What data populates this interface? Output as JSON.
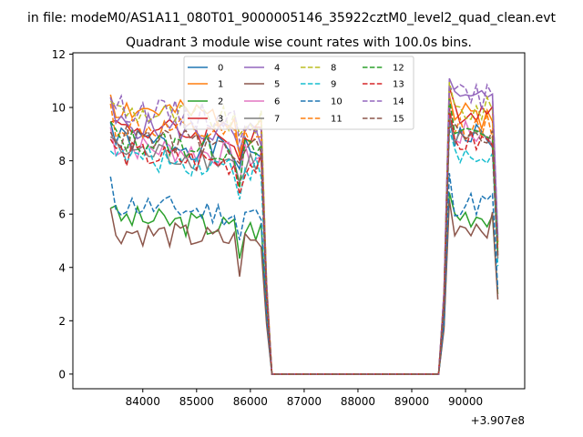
{
  "figure": {
    "suptitle": "in file: modeM0/AS1A11_080T01_9000005146_35922cztM0_level2_quad_clean.evt",
    "title": "Quadrant 3 module wise count rates with 100.0s bins.",
    "x_offset_label": "+3.907e8"
  },
  "chart_data": {
    "type": "line",
    "title": "Quadrant 3 module wise count rates with 100.0s bins.",
    "xlabel": "",
    "ylabel": "",
    "xlim": [
      82700,
      91100
    ],
    "ylim": [
      -0.55,
      12.05
    ],
    "x_offset": 390700000,
    "xticks": [
      84000,
      85000,
      86000,
      87000,
      88000,
      89000,
      90000
    ],
    "yticks": [
      0,
      2,
      4,
      6,
      8,
      10,
      12
    ],
    "grid": false,
    "legend": {
      "placement": "top-center",
      "columns": 4
    },
    "segment_a_x": [
      83400,
      83500,
      83600,
      83700,
      83800,
      83900,
      84000,
      84100,
      84200,
      84300,
      84400,
      84500,
      84600,
      84700,
      84800,
      84900,
      85000,
      85100,
      85200,
      85300,
      85400,
      85500,
      85600,
      85700,
      85800,
      85900,
      86000,
      86100,
      86200
    ],
    "segment_b_x": [
      89700,
      89800,
      89900,
      90000,
      90100,
      90200,
      90300,
      90400,
      90500,
      90600
    ],
    "gap_x": [
      86300,
      86400,
      89500,
      89600
    ],
    "series": [
      {
        "name": "0",
        "color": "#1f77b4",
        "style": "solid",
        "base_a": 8.8,
        "base_b": 8.9,
        "seed": 1
      },
      {
        "name": "1",
        "color": "#ff7f0e",
        "style": "solid",
        "base_a": 10.0,
        "base_b": 9.7,
        "seed": 2
      },
      {
        "name": "2",
        "color": "#2ca02c",
        "style": "solid",
        "base_a": 5.9,
        "base_b": 6.0,
        "seed": 3
      },
      {
        "name": "3",
        "color": "#d62728",
        "style": "solid",
        "base_a": 9.3,
        "base_b": 9.9,
        "seed": 4
      },
      {
        "name": "4",
        "color": "#9467bd",
        "style": "solid",
        "base_a": 9.4,
        "base_b": 10.2,
        "seed": 5
      },
      {
        "name": "5",
        "color": "#8c564b",
        "style": "solid",
        "base_a": 5.4,
        "base_b": 5.6,
        "seed": 6
      },
      {
        "name": "6",
        "color": "#e377c2",
        "style": "solid",
        "base_a": 8.6,
        "base_b": 9.0,
        "seed": 7
      },
      {
        "name": "7",
        "color": "#7f7f7f",
        "style": "solid",
        "base_a": 8.4,
        "base_b": 8.7,
        "seed": 8
      },
      {
        "name": "8",
        "color": "#bcbd22",
        "style": "dashed",
        "base_a": 9.9,
        "base_b": 9.9,
        "seed": 9
      },
      {
        "name": "9",
        "color": "#17becf",
        "style": "dashed",
        "base_a": 8.2,
        "base_b": 8.1,
        "seed": 10
      },
      {
        "name": "10",
        "color": "#1f77b4",
        "style": "dashed",
        "base_a": 6.4,
        "base_b": 6.4,
        "seed": 11
      },
      {
        "name": "11",
        "color": "#ff7f0e",
        "style": "dashed",
        "base_a": 9.3,
        "base_b": 9.3,
        "seed": 12
      },
      {
        "name": "12",
        "color": "#2ca02c",
        "style": "dashed",
        "base_a": 8.8,
        "base_b": 9.1,
        "seed": 13
      },
      {
        "name": "13",
        "color": "#d62728",
        "style": "dashed",
        "base_a": 8.3,
        "base_b": 8.7,
        "seed": 14
      },
      {
        "name": "14",
        "color": "#9467bd",
        "style": "dashed",
        "base_a": 10.0,
        "base_b": 10.4,
        "seed": 15
      },
      {
        "name": "15",
        "color": "#8c564b",
        "style": "dashed",
        "base_a": 8.9,
        "base_b": 8.9,
        "seed": 16
      }
    ]
  }
}
